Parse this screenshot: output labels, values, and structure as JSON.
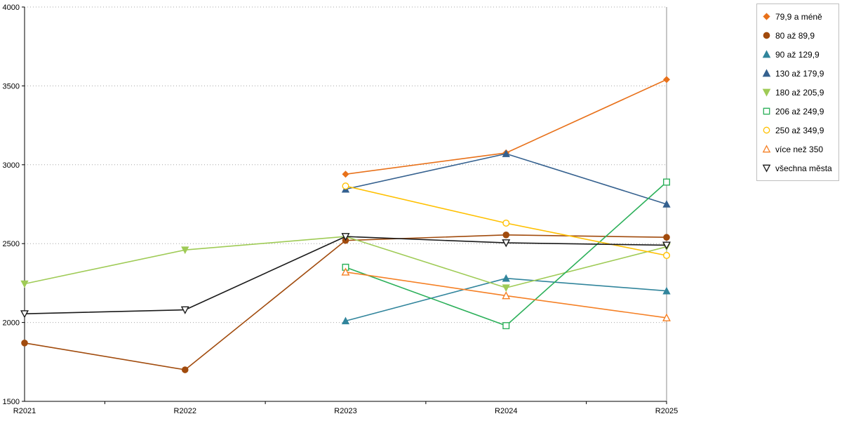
{
  "chart_data": {
    "type": "line",
    "title": "",
    "xlabel": "",
    "ylabel": "",
    "categories": [
      "R2021",
      "R2022",
      "R2023",
      "R2024",
      "R2025"
    ],
    "ylim": [
      1500,
      4000
    ],
    "ytick_step": 500,
    "grid": "horizontal-dotted",
    "legend_position": "right",
    "series": [
      {
        "name": "79,9 a méně",
        "color": "#E8711A",
        "marker": "diamond",
        "fill": true,
        "values": [
          null,
          null,
          2940,
          3075,
          3540
        ]
      },
      {
        "name": "80 až 89,9",
        "color": "#A14B0D",
        "marker": "circle",
        "fill": true,
        "values": [
          1870,
          1700,
          2520,
          2555,
          2540
        ]
      },
      {
        "name": "90 až 129,9",
        "color": "#31859C",
        "marker": "triangle-up",
        "fill": true,
        "values": [
          null,
          null,
          2010,
          2280,
          2200
        ]
      },
      {
        "name": "130 až 179,9",
        "color": "#35618F",
        "marker": "triangle-up",
        "fill": true,
        "values": [
          null,
          null,
          2845,
          3070,
          2750
        ]
      },
      {
        "name": "180 až 205,9",
        "color": "#9FCB56",
        "marker": "triangle-down",
        "fill": true,
        "values": [
          2245,
          2460,
          2545,
          2220,
          2480
        ]
      },
      {
        "name": "206 až 249,9",
        "color": "#2CB05A",
        "marker": "square",
        "fill": false,
        "values": [
          null,
          null,
          2350,
          1980,
          2890
        ]
      },
      {
        "name": "250 až 349,9",
        "color": "#FFC000",
        "marker": "circle",
        "fill": false,
        "values": [
          null,
          null,
          2865,
          2630,
          2425
        ]
      },
      {
        "name": "více než 350",
        "color": "#F58025",
        "marker": "triangle-up",
        "fill": false,
        "values": [
          null,
          null,
          2320,
          2170,
          2030
        ]
      },
      {
        "name": "všechna města",
        "color": "#1A1A1A",
        "marker": "triangle-down",
        "fill": false,
        "values": [
          2055,
          2080,
          2545,
          2505,
          2490
        ]
      }
    ]
  }
}
